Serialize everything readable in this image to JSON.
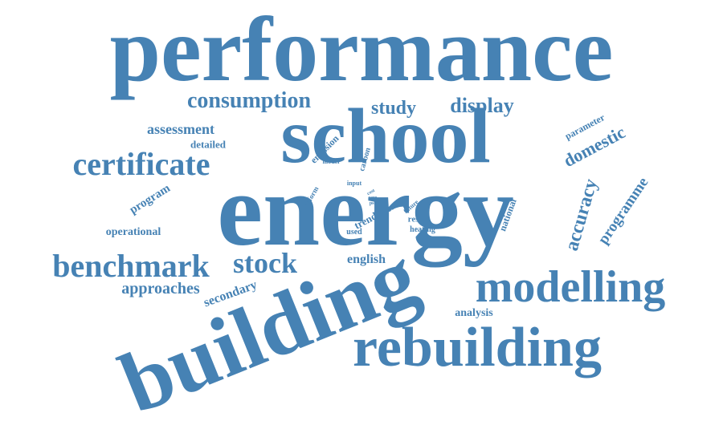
{
  "style": {
    "word_color": "#4682b4",
    "background": "#ffffff"
  },
  "words": {
    "performance": "performance",
    "school": "school",
    "energy": "energy",
    "building": "building",
    "rebuilding": "rebuilding",
    "modelling": "modelling",
    "benchmark": "benchmark",
    "stock": "stock",
    "certificate": "certificate",
    "consumption": "consumption",
    "study": "study",
    "display": "display",
    "assessment": "assessment",
    "detailed": "detailed",
    "domestic": "domestic",
    "parameter": "parameter",
    "accuracy": "accuracy",
    "programme": "programme",
    "program": "program",
    "approaches": "approaches",
    "secondary": "secondary",
    "operational": "operational",
    "english": "english",
    "analysis": "analysis",
    "national": "national",
    "emission": "emission",
    "model": "model",
    "carbon": "carbon",
    "inform": "inform",
    "input": "input",
    "cost": "cost",
    "zero": "zero",
    "psbp": "psbp",
    "case": "case",
    "future": "future",
    "trend": "trend",
    "result": "result",
    "heating": "heating",
    "used": "used"
  }
}
